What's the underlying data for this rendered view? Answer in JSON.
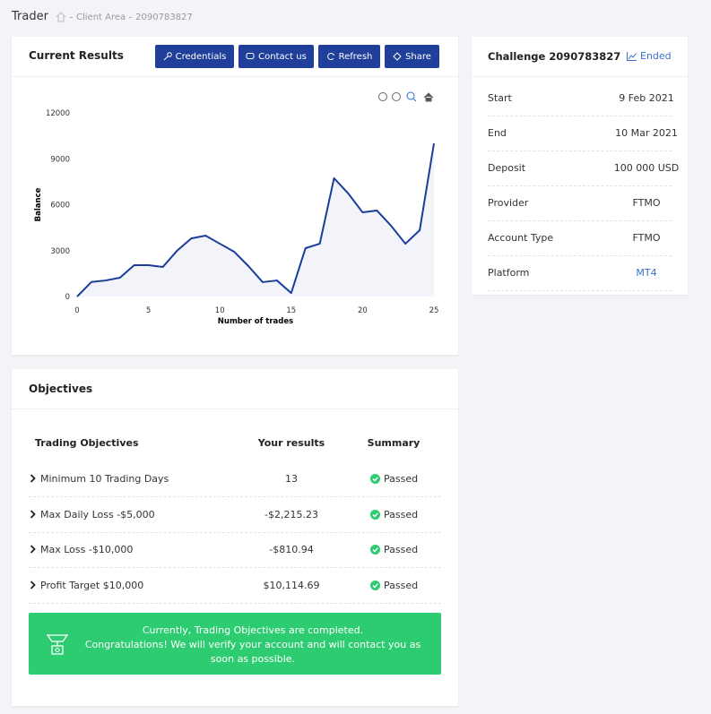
{
  "header": {
    "title": "Trader",
    "breadcrumb": [
      "Client Area",
      "2090783827"
    ]
  },
  "results": {
    "title": "Current Results",
    "buttons": [
      "Credentials",
      "Contact us",
      "Refresh",
      "Share"
    ]
  },
  "chart_data": {
    "type": "line",
    "x_label": "Number of trades",
    "y_label": "Balance",
    "x": [
      0,
      1,
      2,
      3,
      4,
      5,
      6,
      7,
      8,
      9,
      10,
      11,
      12,
      13,
      14,
      15,
      16,
      17,
      18,
      19,
      20,
      21,
      22,
      23,
      24,
      25
    ],
    "series": [
      {
        "name": "Balance",
        "color": "#1a3d99",
        "values": [
          0,
          950,
          1050,
          1230,
          2050,
          2050,
          1930,
          2990,
          3800,
          3980,
          3450,
          2930,
          1990,
          940,
          1050,
          230,
          3160,
          3450,
          7730,
          6730,
          5500,
          5620,
          4620,
          3450,
          4330,
          10010
        ]
      }
    ],
    "xlim": [
      0,
      25
    ],
    "xticks": [
      0,
      5,
      10,
      15,
      20,
      25
    ],
    "ylim": [
      0,
      12000
    ],
    "yticks": [
      0,
      3000,
      6000,
      9000,
      12000
    ],
    "grid": false
  },
  "challenge": {
    "title": "Challenge 2090783827",
    "status": "Ended",
    "rows": [
      [
        "Start",
        "9 Feb 2021"
      ],
      [
        "End",
        "10 Mar 2021"
      ],
      [
        "Deposit",
        "100 000 USD"
      ],
      [
        "Provider",
        "FTMO"
      ],
      [
        "Account Type",
        "FTMO"
      ],
      [
        "Platform",
        "MT4"
      ]
    ]
  },
  "objectives": {
    "title": "Objectives",
    "columns": [
      "Trading Objectives",
      "Your results",
      "Summary"
    ],
    "rows": [
      [
        "Minimum 10 Trading Days",
        "13",
        "Passed"
      ],
      [
        "Max Daily Loss -$5,000",
        "-$2,215.23",
        "Passed"
      ],
      [
        "Max Loss -$10,000",
        "-$810.94",
        "Passed"
      ],
      [
        "Profit Target $10,000",
        "$10,114.69",
        "Passed"
      ]
    ],
    "message": [
      "Currently, Trading Objectives are completed.",
      "Congratulations! We will verify your account and will contact you as",
      "soon as possible."
    ]
  }
}
